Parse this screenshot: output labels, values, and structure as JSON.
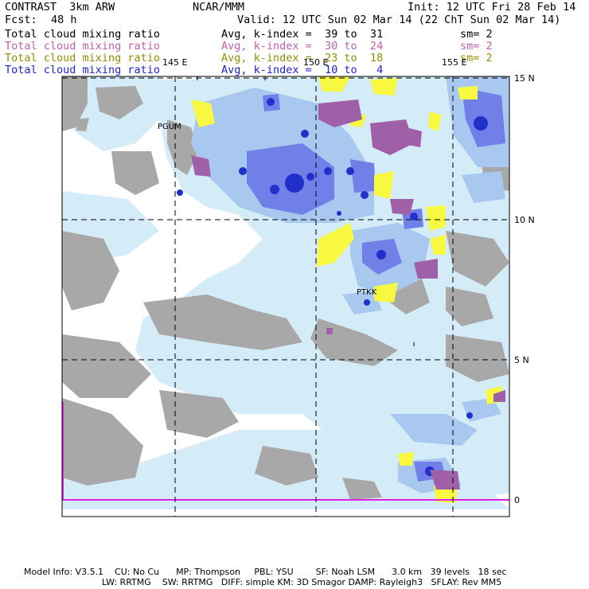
{
  "header": {
    "model": "CONTRAST  3km ARW",
    "center": "NCAR/MMM",
    "init": "Init: 12 UTC Fri 28 Feb 14",
    "fcst_label": "Fcst:",
    "fcst_value": "48 h",
    "valid": "Valid: 12 UTC Sun 02 Mar 14 (22 ChT Sun 02 Mar 14)"
  },
  "fields": [
    {
      "name": "Total cloud mixing ratio",
      "avg": "Avg, k-index =  39 to  31",
      "sm": "sm= 2",
      "color": "#000000"
    },
    {
      "name": "Total cloud mixing ratio",
      "avg": "Avg, k-index =  30 to  24",
      "sm": "sm= 2",
      "color": "#c060b0"
    },
    {
      "name": "Total cloud mixing ratio",
      "avg": "Avg, k-index =  23 to  18",
      "sm": "sm= 2",
      "color": "#909000"
    },
    {
      "name": "Total cloud mixing ratio",
      "avg": "Avg, k-index =  10 to   4",
      "sm": "",
      "color": "#2020e0"
    }
  ],
  "map": {
    "lon_labels": [
      "145 E",
      "150 E",
      "155 E"
    ],
    "lat_labels": [
      "15 N",
      "10 N",
      "5 N",
      "0"
    ],
    "stations": [
      "PGUM",
      "PTKK"
    ],
    "colors": {
      "gray": "#a8a8a8",
      "light_blue": "#d4ecf8",
      "mid_blue": "#a8c8f0",
      "blue": "#7080e8",
      "dark_blue": "#2030c8",
      "yellow": "#f8f840",
      "purple": "#a060a8",
      "magenta": "#e020e0"
    }
  },
  "footer": {
    "line1": "Model Info: V3.5.1    CU: No Cu      MP: Thompson     PBL: YSU        SF: Noah LSM      3.0 km   39 levels   18 sec",
    "line2": "LW: RRTMG    SW: RRTMG   DIFF: simple KM: 3D Smagor DAMP: Rayleigh3   SFLAY: Rev MM5"
  }
}
